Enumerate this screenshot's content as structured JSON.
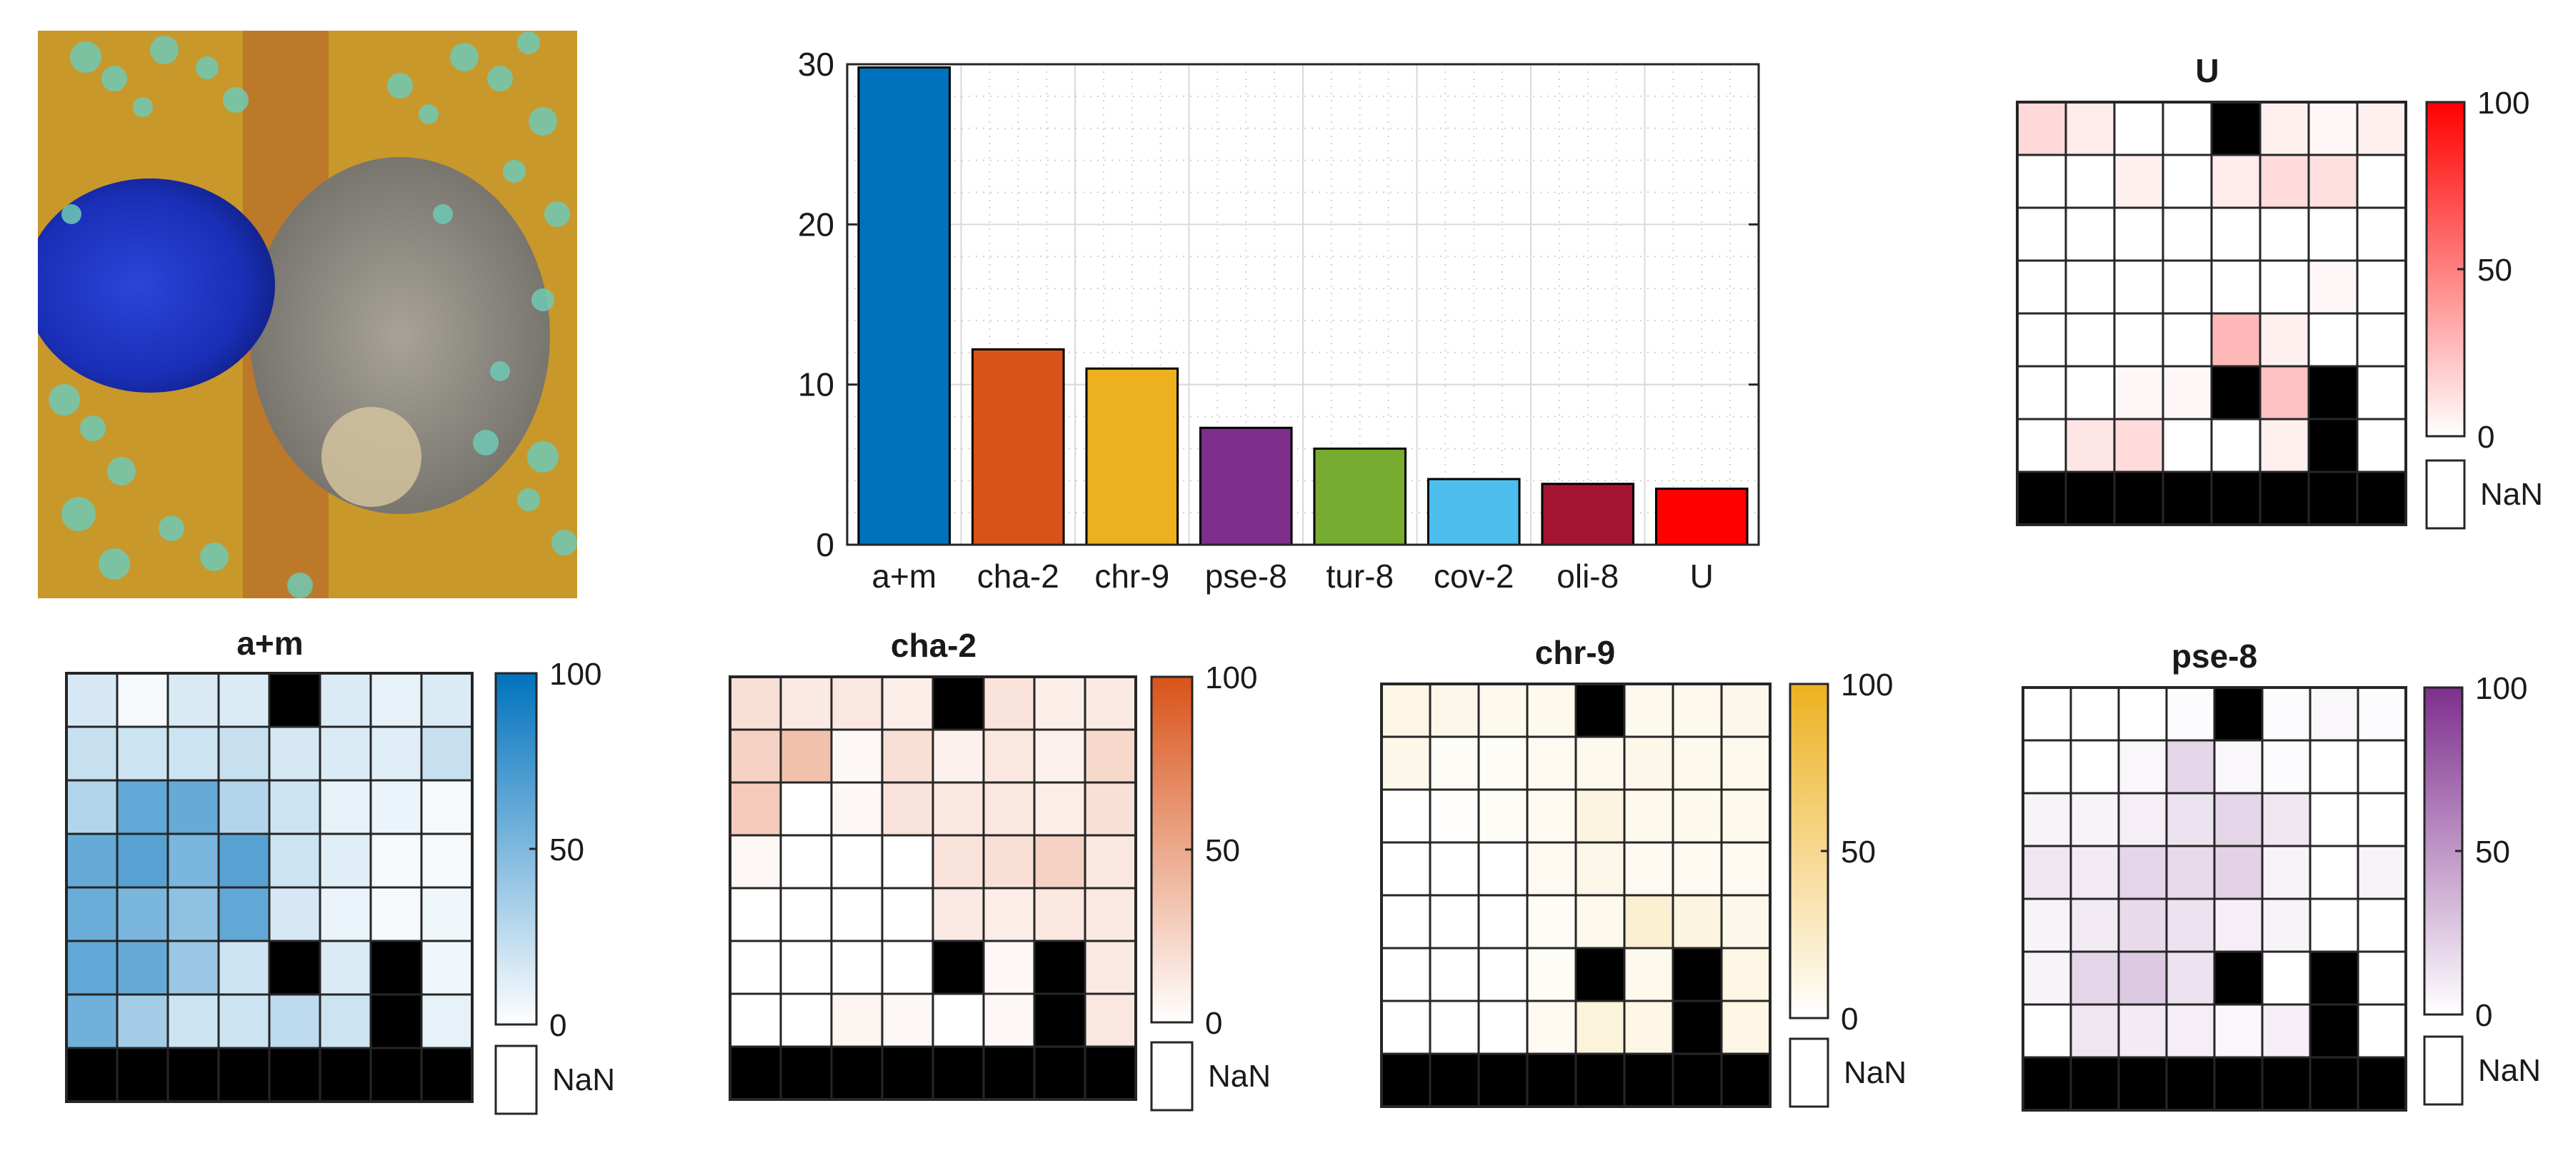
{
  "palette": {
    "bg": "#ffffff",
    "black": "#000000",
    "nan": "#ffffff",
    "grid": "#d9d9d9"
  },
  "photo": {
    "description_icon": "mineral-photo",
    "colors": {
      "azurite": "#1a2fb8",
      "malachite": "#6ec9b5",
      "limonite": "#c9982a",
      "matrix": "#8b8b8b",
      "rust": "#b06028"
    }
  },
  "chart_data": [
    {
      "type": "bar",
      "title": "",
      "xlabel": "",
      "ylabel": "",
      "categories": [
        "a+m",
        "cha-2",
        "chr-9",
        "pse-8",
        "tur-8",
        "cov-2",
        "oli-8",
        "U"
      ],
      "values": [
        29.8,
        12.2,
        11.0,
        7.3,
        6.0,
        4.1,
        3.8,
        3.5
      ],
      "colors": [
        "#0072BD",
        "#D95319",
        "#EDB120",
        "#7E2F8E",
        "#77AC30",
        "#4DBEEE",
        "#A2142F",
        "#FF0000"
      ],
      "ylim": [
        0,
        30
      ],
      "yticks": [
        0,
        10,
        20,
        30
      ],
      "grid": true,
      "minor_grid": true
    },
    {
      "type": "heatmap",
      "title": "U",
      "color": "#FF0000",
      "clim": [
        0,
        100
      ],
      "cbar_ticks": [
        0,
        50,
        100
      ],
      "nan_label": "NaN",
      "values": [
        [
          15,
          8,
          0,
          0,
          null,
          6,
          3,
          6
        ],
        [
          0,
          0,
          6,
          0,
          8,
          14,
          12,
          0
        ],
        [
          0,
          0,
          0,
          0,
          0,
          0,
          0,
          0
        ],
        [
          0,
          0,
          0,
          0,
          0,
          0,
          3,
          0
        ],
        [
          0,
          0,
          0,
          0,
          28,
          6,
          0,
          0
        ],
        [
          0,
          0,
          3,
          3,
          null,
          24,
          null,
          0
        ],
        [
          0,
          10,
          14,
          0,
          0,
          6,
          null,
          0
        ],
        [
          null,
          null,
          null,
          null,
          null,
          null,
          null,
          null
        ]
      ]
    },
    {
      "type": "heatmap",
      "title": "a+m",
      "color": "#0072BD",
      "clim": [
        0,
        100
      ],
      "cbar_ticks": [
        0,
        50,
        100
      ],
      "nan_label": "NaN",
      "values": [
        [
          16,
          4,
          15,
          14,
          null,
          14,
          10,
          14
        ],
        [
          22,
          20,
          20,
          22,
          16,
          14,
          12,
          22
        ],
        [
          30,
          62,
          60,
          30,
          20,
          10,
          8,
          4
        ],
        [
          60,
          66,
          52,
          66,
          20,
          12,
          4,
          4
        ],
        [
          58,
          52,
          44,
          62,
          16,
          8,
          4,
          6
        ],
        [
          62,
          60,
          40,
          20,
          null,
          14,
          null,
          6
        ],
        [
          56,
          36,
          20,
          20,
          26,
          20,
          null,
          10
        ],
        [
          null,
          null,
          null,
          null,
          null,
          null,
          null,
          null
        ]
      ]
    },
    {
      "type": "heatmap",
      "title": "cha-2",
      "color": "#D95319",
      "clim": [
        0,
        100
      ],
      "cbar_ticks": [
        0,
        50,
        100
      ],
      "nan_label": "NaN",
      "values": [
        [
          18,
          12,
          14,
          10,
          null,
          16,
          10,
          12
        ],
        [
          26,
          36,
          4,
          18,
          8,
          14,
          8,
          22
        ],
        [
          30,
          0,
          4,
          16,
          14,
          14,
          10,
          18
        ],
        [
          4,
          0,
          0,
          0,
          16,
          18,
          26,
          14
        ],
        [
          0,
          0,
          0,
          0,
          12,
          10,
          14,
          12
        ],
        [
          0,
          0,
          0,
          0,
          null,
          4,
          null,
          12
        ],
        [
          0,
          0,
          6,
          4,
          0,
          4,
          null,
          14
        ],
        [
          null,
          null,
          null,
          null,
          null,
          null,
          null,
          null
        ]
      ]
    },
    {
      "type": "heatmap",
      "title": "chr-9",
      "color": "#EDB120",
      "clim": [
        0,
        100
      ],
      "cbar_ticks": [
        0,
        50,
        100
      ],
      "nan_label": "NaN",
      "values": [
        [
          12,
          10,
          8,
          8,
          null,
          8,
          8,
          10
        ],
        [
          10,
          4,
          4,
          6,
          8,
          10,
          8,
          8
        ],
        [
          0,
          2,
          4,
          6,
          14,
          8,
          8,
          8
        ],
        [
          0,
          0,
          0,
          6,
          10,
          6,
          6,
          6
        ],
        [
          0,
          0,
          0,
          4,
          8,
          20,
          14,
          10
        ],
        [
          0,
          0,
          0,
          4,
          null,
          8,
          null,
          12
        ],
        [
          0,
          0,
          0,
          6,
          16,
          12,
          null,
          12
        ],
        [
          null,
          null,
          null,
          null,
          null,
          null,
          null,
          null
        ]
      ]
    },
    {
      "type": "heatmap",
      "title": "pse-8",
      "color": "#7E2F8E",
      "clim": [
        0,
        100
      ],
      "cbar_ticks": [
        0,
        50,
        100
      ],
      "nan_label": "NaN",
      "values": [
        [
          0,
          0,
          0,
          2,
          null,
          2,
          4,
          2
        ],
        [
          0,
          0,
          4,
          20,
          4,
          2,
          0,
          0
        ],
        [
          6,
          6,
          8,
          14,
          20,
          12,
          0,
          0
        ],
        [
          12,
          10,
          20,
          18,
          22,
          6,
          0,
          6
        ],
        [
          6,
          10,
          18,
          14,
          8,
          6,
          0,
          0
        ],
        [
          6,
          20,
          26,
          14,
          null,
          0,
          null,
          0
        ],
        [
          0,
          12,
          10,
          8,
          4,
          8,
          null,
          0
        ],
        [
          null,
          null,
          null,
          null,
          null,
          null,
          null,
          null
        ]
      ]
    }
  ]
}
